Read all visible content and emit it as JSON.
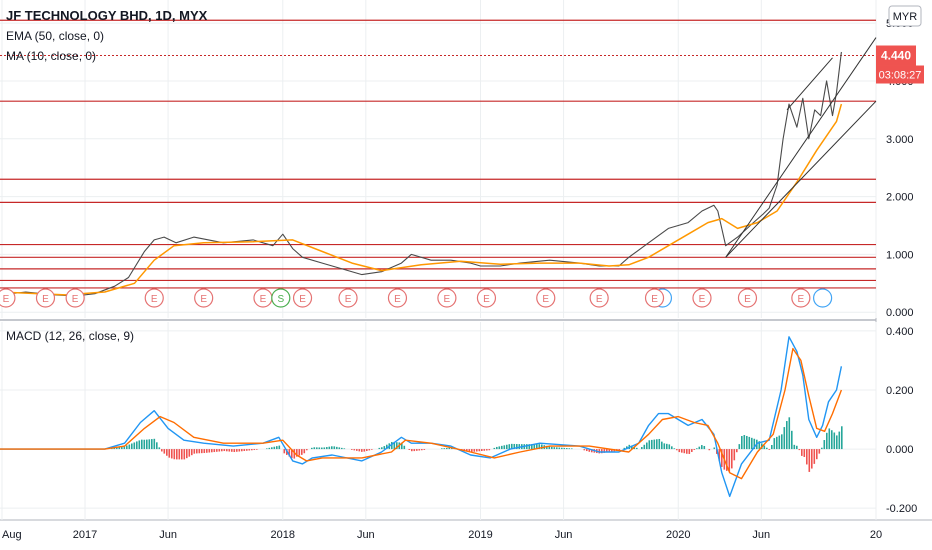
{
  "header": {
    "symbol": "JF TECHNOLOGY BHD, 1D, MYX",
    "ema_legend": "EMA (50, close, 0)",
    "ma_legend": "MA (10, close, 0)",
    "currency": "MYR"
  },
  "price_badge": {
    "value": "4.440",
    "countdown": "03:08:27",
    "color": "#ef5350"
  },
  "colors": {
    "price_line": "#4a4a4a",
    "ema": "#ff9800",
    "ma": "#2196f3",
    "hline": "#c62828",
    "trendline": "#333333",
    "macd": "#2196f3",
    "signal": "#ff6d00",
    "hist_up": "#26a69a",
    "hist_down": "#ef5350",
    "event_earnings": "#e57373",
    "event_split": "#4caf50",
    "event_dividend": "#42a5f5"
  },
  "chart_data": [
    {
      "type": "line",
      "title": "JF TECHNOLOGY BHD, 1D, MYX",
      "ylim": [
        -0.1,
        5.4
      ],
      "y_ticks": [
        "0.000",
        "1.000",
        "2.000",
        "3.000",
        "4.000",
        "5.000"
      ],
      "x_ticks": [
        {
          "label": "Aug",
          "t": 2016.58
        },
        {
          "label": "2017",
          "t": 2017.0
        },
        {
          "label": "Jun",
          "t": 2017.42
        },
        {
          "label": "2018",
          "t": 2018.0
        },
        {
          "label": "Jun",
          "t": 2018.42
        },
        {
          "label": "2019",
          "t": 2019.0
        },
        {
          "label": "Jun",
          "t": 2019.42
        },
        {
          "label": "2020",
          "t": 2020.0
        },
        {
          "label": "Jun",
          "t": 2020.42
        },
        {
          "label": "20",
          "t": 2021.0
        }
      ],
      "xlim": [
        2016.57,
        2021.0
      ],
      "series": [
        {
          "name": "Price",
          "x": [
            2016.57,
            2016.7,
            2016.85,
            2016.95,
            2017.05,
            2017.15,
            2017.22,
            2017.3,
            2017.35,
            2017.4,
            2017.46,
            2017.55,
            2017.7,
            2017.85,
            2017.95,
            2018.0,
            2018.05,
            2018.1,
            2018.2,
            2018.3,
            2018.4,
            2018.5,
            2018.6,
            2018.65,
            2018.75,
            2018.85,
            2018.95,
            2019.0,
            2019.1,
            2019.2,
            2019.35,
            2019.5,
            2019.6,
            2019.7,
            2019.75,
            2019.85,
            2019.95,
            2020.05,
            2020.12,
            2020.18,
            2020.2,
            2020.24,
            2020.3,
            2020.38,
            2020.43,
            2020.46,
            2020.5,
            2020.53,
            2020.56,
            2020.6,
            2020.63,
            2020.66,
            2020.69,
            2020.72,
            2020.75,
            2020.78,
            2020.8,
            2020.825
          ],
          "values": [
            0.3,
            0.35,
            0.3,
            0.28,
            0.32,
            0.45,
            0.6,
            1.05,
            1.25,
            1.3,
            1.2,
            1.3,
            1.2,
            1.25,
            1.15,
            1.35,
            1.1,
            0.95,
            0.85,
            0.75,
            0.65,
            0.7,
            0.85,
            1.0,
            0.9,
            0.9,
            0.85,
            0.8,
            0.8,
            0.85,
            0.9,
            0.85,
            0.8,
            0.8,
            0.95,
            1.2,
            1.45,
            1.55,
            1.75,
            1.85,
            1.75,
            1.15,
            1.3,
            1.55,
            1.7,
            1.8,
            2.2,
            3.0,
            3.6,
            3.2,
            3.7,
            3.0,
            3.5,
            3.4,
            4.0,
            3.4,
            3.8,
            4.5
          ]
        },
        {
          "name": "EMA (50, close, 0)",
          "x": [
            2016.57,
            2016.9,
            2017.1,
            2017.25,
            2017.35,
            2017.45,
            2017.6,
            2017.85,
            2018.05,
            2018.2,
            2018.35,
            2018.5,
            2018.7,
            2018.9,
            2019.1,
            2019.3,
            2019.5,
            2019.65,
            2019.75,
            2019.85,
            2019.95,
            2020.05,
            2020.15,
            2020.22,
            2020.3,
            2020.4,
            2020.5,
            2020.6,
            2020.7,
            2020.8,
            2020.825
          ],
          "values": [
            0.35,
            0.3,
            0.35,
            0.5,
            0.9,
            1.15,
            1.2,
            1.22,
            1.25,
            1.05,
            0.85,
            0.72,
            0.82,
            0.88,
            0.83,
            0.85,
            0.85,
            0.8,
            0.82,
            0.95,
            1.15,
            1.35,
            1.55,
            1.62,
            1.45,
            1.55,
            1.75,
            2.25,
            2.8,
            3.3,
            3.6
          ]
        }
      ],
      "horizontal_levels": [
        5.05,
        3.65,
        2.3,
        1.9,
        1.17,
        0.95,
        0.75,
        0.55,
        0.42
      ],
      "last_price_level": 4.44,
      "trendlines": [
        {
          "from": [
            2020.24,
            0.95
          ],
          "to": [
            2021.0,
            3.65
          ]
        },
        {
          "from": [
            2020.24,
            0.95
          ],
          "to": [
            2021.0,
            4.75
          ]
        },
        {
          "from": [
            2020.55,
            3.5
          ],
          "to": [
            2020.78,
            4.4
          ]
        }
      ],
      "events": {
        "earnings_t": [
          2016.6,
          2016.8,
          2016.95,
          2017.35,
          2017.6,
          2017.9,
          2018.1,
          2018.33,
          2018.58,
          2018.83,
          2019.03,
          2019.33,
          2019.6,
          2019.88,
          2020.12,
          2020.35,
          2020.62
        ],
        "split_t": [
          2017.99
        ],
        "dividend_t": [
          2019.92,
          2020.73
        ]
      }
    },
    {
      "type": "line",
      "title": "MACD (12, 26, close, 9)",
      "ylim": [
        -0.24,
        0.43
      ],
      "y_ticks": [
        "0.400",
        "0.200",
        "0.000",
        "-0.200"
      ],
      "series": [
        {
          "name": "MACD",
          "x": [
            2016.57,
            2016.9,
            2017.1,
            2017.2,
            2017.28,
            2017.35,
            2017.42,
            2017.5,
            2017.6,
            2017.75,
            2017.9,
            2017.98,
            2018.05,
            2018.1,
            2018.15,
            2018.25,
            2018.4,
            2018.5,
            2018.6,
            2018.65,
            2018.75,
            2018.85,
            2018.95,
            2019.05,
            2019.15,
            2019.3,
            2019.5,
            2019.6,
            2019.7,
            2019.8,
            2019.85,
            2019.9,
            2019.95,
            2020.05,
            2020.12,
            2020.18,
            2020.22,
            2020.26,
            2020.32,
            2020.4,
            2020.46,
            2020.52,
            2020.56,
            2020.6,
            2020.63,
            2020.66,
            2020.7,
            2020.73,
            2020.76,
            2020.8,
            2020.825
          ],
          "values": [
            0.0,
            0.0,
            0.0,
            0.02,
            0.09,
            0.13,
            0.07,
            0.03,
            0.02,
            0.01,
            0.02,
            0.04,
            -0.04,
            -0.05,
            -0.03,
            -0.02,
            -0.04,
            -0.01,
            0.04,
            0.02,
            0.02,
            0.01,
            -0.02,
            -0.03,
            0.0,
            0.02,
            0.01,
            -0.01,
            -0.01,
            0.02,
            0.08,
            0.12,
            0.12,
            0.08,
            0.1,
            0.05,
            -0.08,
            -0.16,
            -0.05,
            0.02,
            0.03,
            0.2,
            0.38,
            0.33,
            0.25,
            0.1,
            0.04,
            0.08,
            0.16,
            0.2,
            0.28
          ]
        },
        {
          "name": "Signal",
          "x": [
            2016.57,
            2016.9,
            2017.1,
            2017.2,
            2017.3,
            2017.38,
            2017.45,
            2017.55,
            2017.7,
            2017.9,
            2018.0,
            2018.07,
            2018.12,
            2018.2,
            2018.4,
            2018.55,
            2018.62,
            2018.75,
            2018.95,
            2019.07,
            2019.2,
            2019.35,
            2019.55,
            2019.75,
            2019.85,
            2019.92,
            2020.0,
            2020.08,
            2020.15,
            2020.2,
            2020.26,
            2020.32,
            2020.4,
            2020.48,
            2020.54,
            2020.58,
            2020.62,
            2020.66,
            2020.7,
            2020.74,
            2020.78,
            2020.825
          ],
          "values": [
            0.0,
            0.0,
            0.0,
            0.01,
            0.07,
            0.11,
            0.09,
            0.04,
            0.02,
            0.02,
            0.03,
            -0.02,
            -0.04,
            -0.03,
            -0.03,
            -0.01,
            0.03,
            0.02,
            -0.01,
            -0.03,
            -0.01,
            0.01,
            0.01,
            -0.01,
            0.05,
            0.1,
            0.11,
            0.09,
            0.08,
            0.02,
            -0.08,
            -0.1,
            -0.01,
            0.05,
            0.2,
            0.34,
            0.3,
            0.18,
            0.07,
            0.06,
            0.12,
            0.2
          ]
        }
      ]
    }
  ]
}
